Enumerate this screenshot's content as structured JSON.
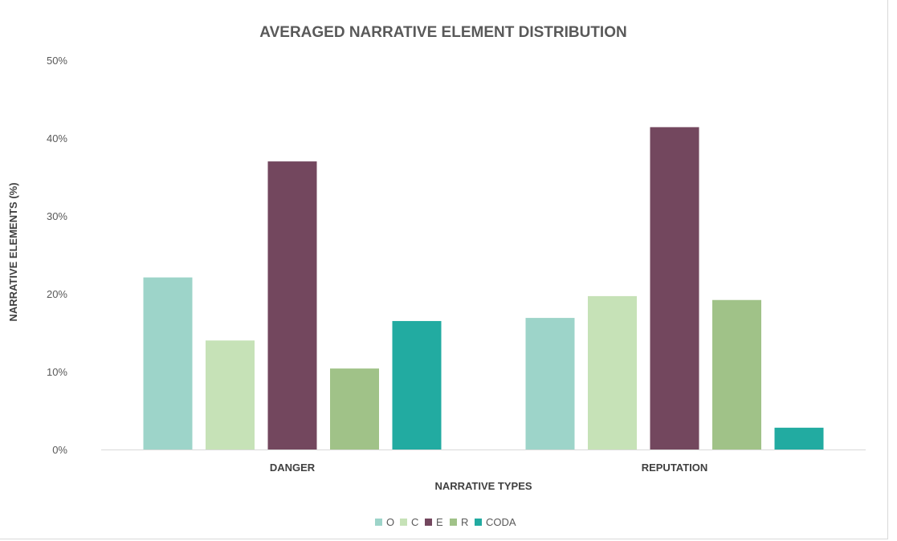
{
  "chart_data": {
    "type": "bar",
    "title": "AVERAGED NARRATIVE ELEMENT DISTRIBUTION",
    "xlabel": "NARRATIVE TYPES",
    "ylabel": "NARRATIVE ELEMENTS (%)",
    "ylim": [
      0,
      50
    ],
    "yticks": [
      "0%",
      "10%",
      "20%",
      "30%",
      "40%",
      "50%"
    ],
    "grid": false,
    "legend_position": "bottom",
    "categories": [
      "DANGER",
      "REPUTATION"
    ],
    "series": [
      {
        "name": "O",
        "color": "#9dd4c9",
        "values": [
          22.1,
          16.9
        ]
      },
      {
        "name": "C",
        "color": "#c6e2b7",
        "values": [
          14.0,
          19.7
        ]
      },
      {
        "name": "E",
        "color": "#73475e",
        "values": [
          37.0,
          41.4
        ]
      },
      {
        "name": "R",
        "color": "#a0c288",
        "values": [
          10.4,
          19.2
        ]
      },
      {
        "name": "CODA",
        "color": "#22aba1",
        "values": [
          16.5,
          2.8
        ]
      }
    ]
  }
}
